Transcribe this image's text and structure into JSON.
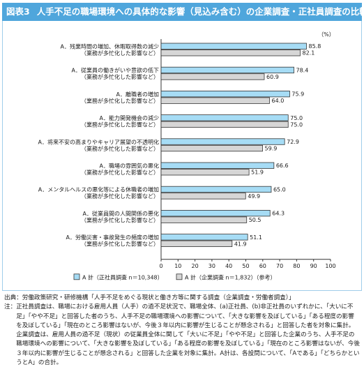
{
  "title": {
    "fig_no": "図表3",
    "text": "人手不足の職場環境への具体的な影響（見込み含む）の企業調査・正社員調査の比較"
  },
  "colors": {
    "title_bg": "#4fa6dc",
    "series_a": "#a6dcf5",
    "series_b": "#d6d6d6",
    "bar_border": "#333333"
  },
  "chart_data": {
    "type": "bar",
    "orientation": "horizontal",
    "unit_label": "（%）",
    "xlim": [
      0,
      100
    ],
    "xticks": [
      0,
      10,
      20,
      30,
      40,
      50,
      60,
      70,
      80,
      90,
      100
    ],
    "categories": [
      {
        "label_a": "A．残業時間の増加、休暇取得数の減少",
        "label_b": "（業務が多忙化した影響など）"
      },
      {
        "label_a": "A．従業員の働きがいや意欲の低下",
        "label_b": "（業務が多忙化した影響など）"
      },
      {
        "label_a": "A．離職者の増加",
        "label_b": "（業務が多忙化した影響など）"
      },
      {
        "label_a": "A．能力開発機会の減少",
        "label_b": "（業務が多忙化した影響など）"
      },
      {
        "label_a": "A．将来不安の高まりやキャリア展望の不透明化",
        "label_b": "（業務が多忙化した影響など）"
      },
      {
        "label_a": "A．職場の雰囲気の悪化",
        "label_b": "（業務が多忙化した影響など）"
      },
      {
        "label_a": "A．メンタルヘルスの悪化等による休職者の増加",
        "label_b": "（業務が多忙化した影響など）"
      },
      {
        "label_a": "A．従業員間の人間関係の悪化",
        "label_b": "（業務が多忙化した影響など）"
      },
      {
        "label_a": "A．労働災害・事故発生の頻度の増加",
        "label_b": "（業務が多忙化した影響など）"
      }
    ],
    "series": [
      {
        "name": "A 計（正社員調査 n＝10,348）",
        "values": [
          85.8,
          78.4,
          75.9,
          75.0,
          72.9,
          66.6,
          65.0,
          64.3,
          51.1
        ]
      },
      {
        "name": "A 計（企業調査 n＝1,832）（参考）",
        "values": [
          82.1,
          60.9,
          64.0,
          75.0,
          59.9,
          51.9,
          49.9,
          50.5,
          41.9
        ]
      }
    ],
    "legend_position": "bottom"
  },
  "notes": {
    "source_key": "出典：",
    "source": "労働政策研究・研修機構「人手不足をめぐる現状と働き方等に関する調査（企業調査・労働者調査）」",
    "note_key": "注：",
    "note": "正社員調査は、職場における雇用人員（人手）の過不足状況で、職場全体、(a)正社員、(b)非正社員のいずれかに、「大いに不足」「やや不足」と回答した者のうち、人手不足の職場環境への影響について、「大きな影響を及ぼしている」「ある程度の影響を及ぼしている」「現在のところ影響はないが、今後３年以内に影響が生じることが懸念される」と回答した者を対象に集計。企業調査は、雇用人員の過不足（現状）の従業員全体に関して「大いに不足」「やや不足」と回答した企業のうち、人手不足の職場環境への影響について、「大きな影響を及ぼしている」「ある程度の影響を及ぼしている」「現在のところ影響はないが、今後３年以内に影響が生じることが懸念される」と回答した企業を対象に集計。A計は、各設問について、「Aである」「どちらかというとA」の合計。"
  }
}
